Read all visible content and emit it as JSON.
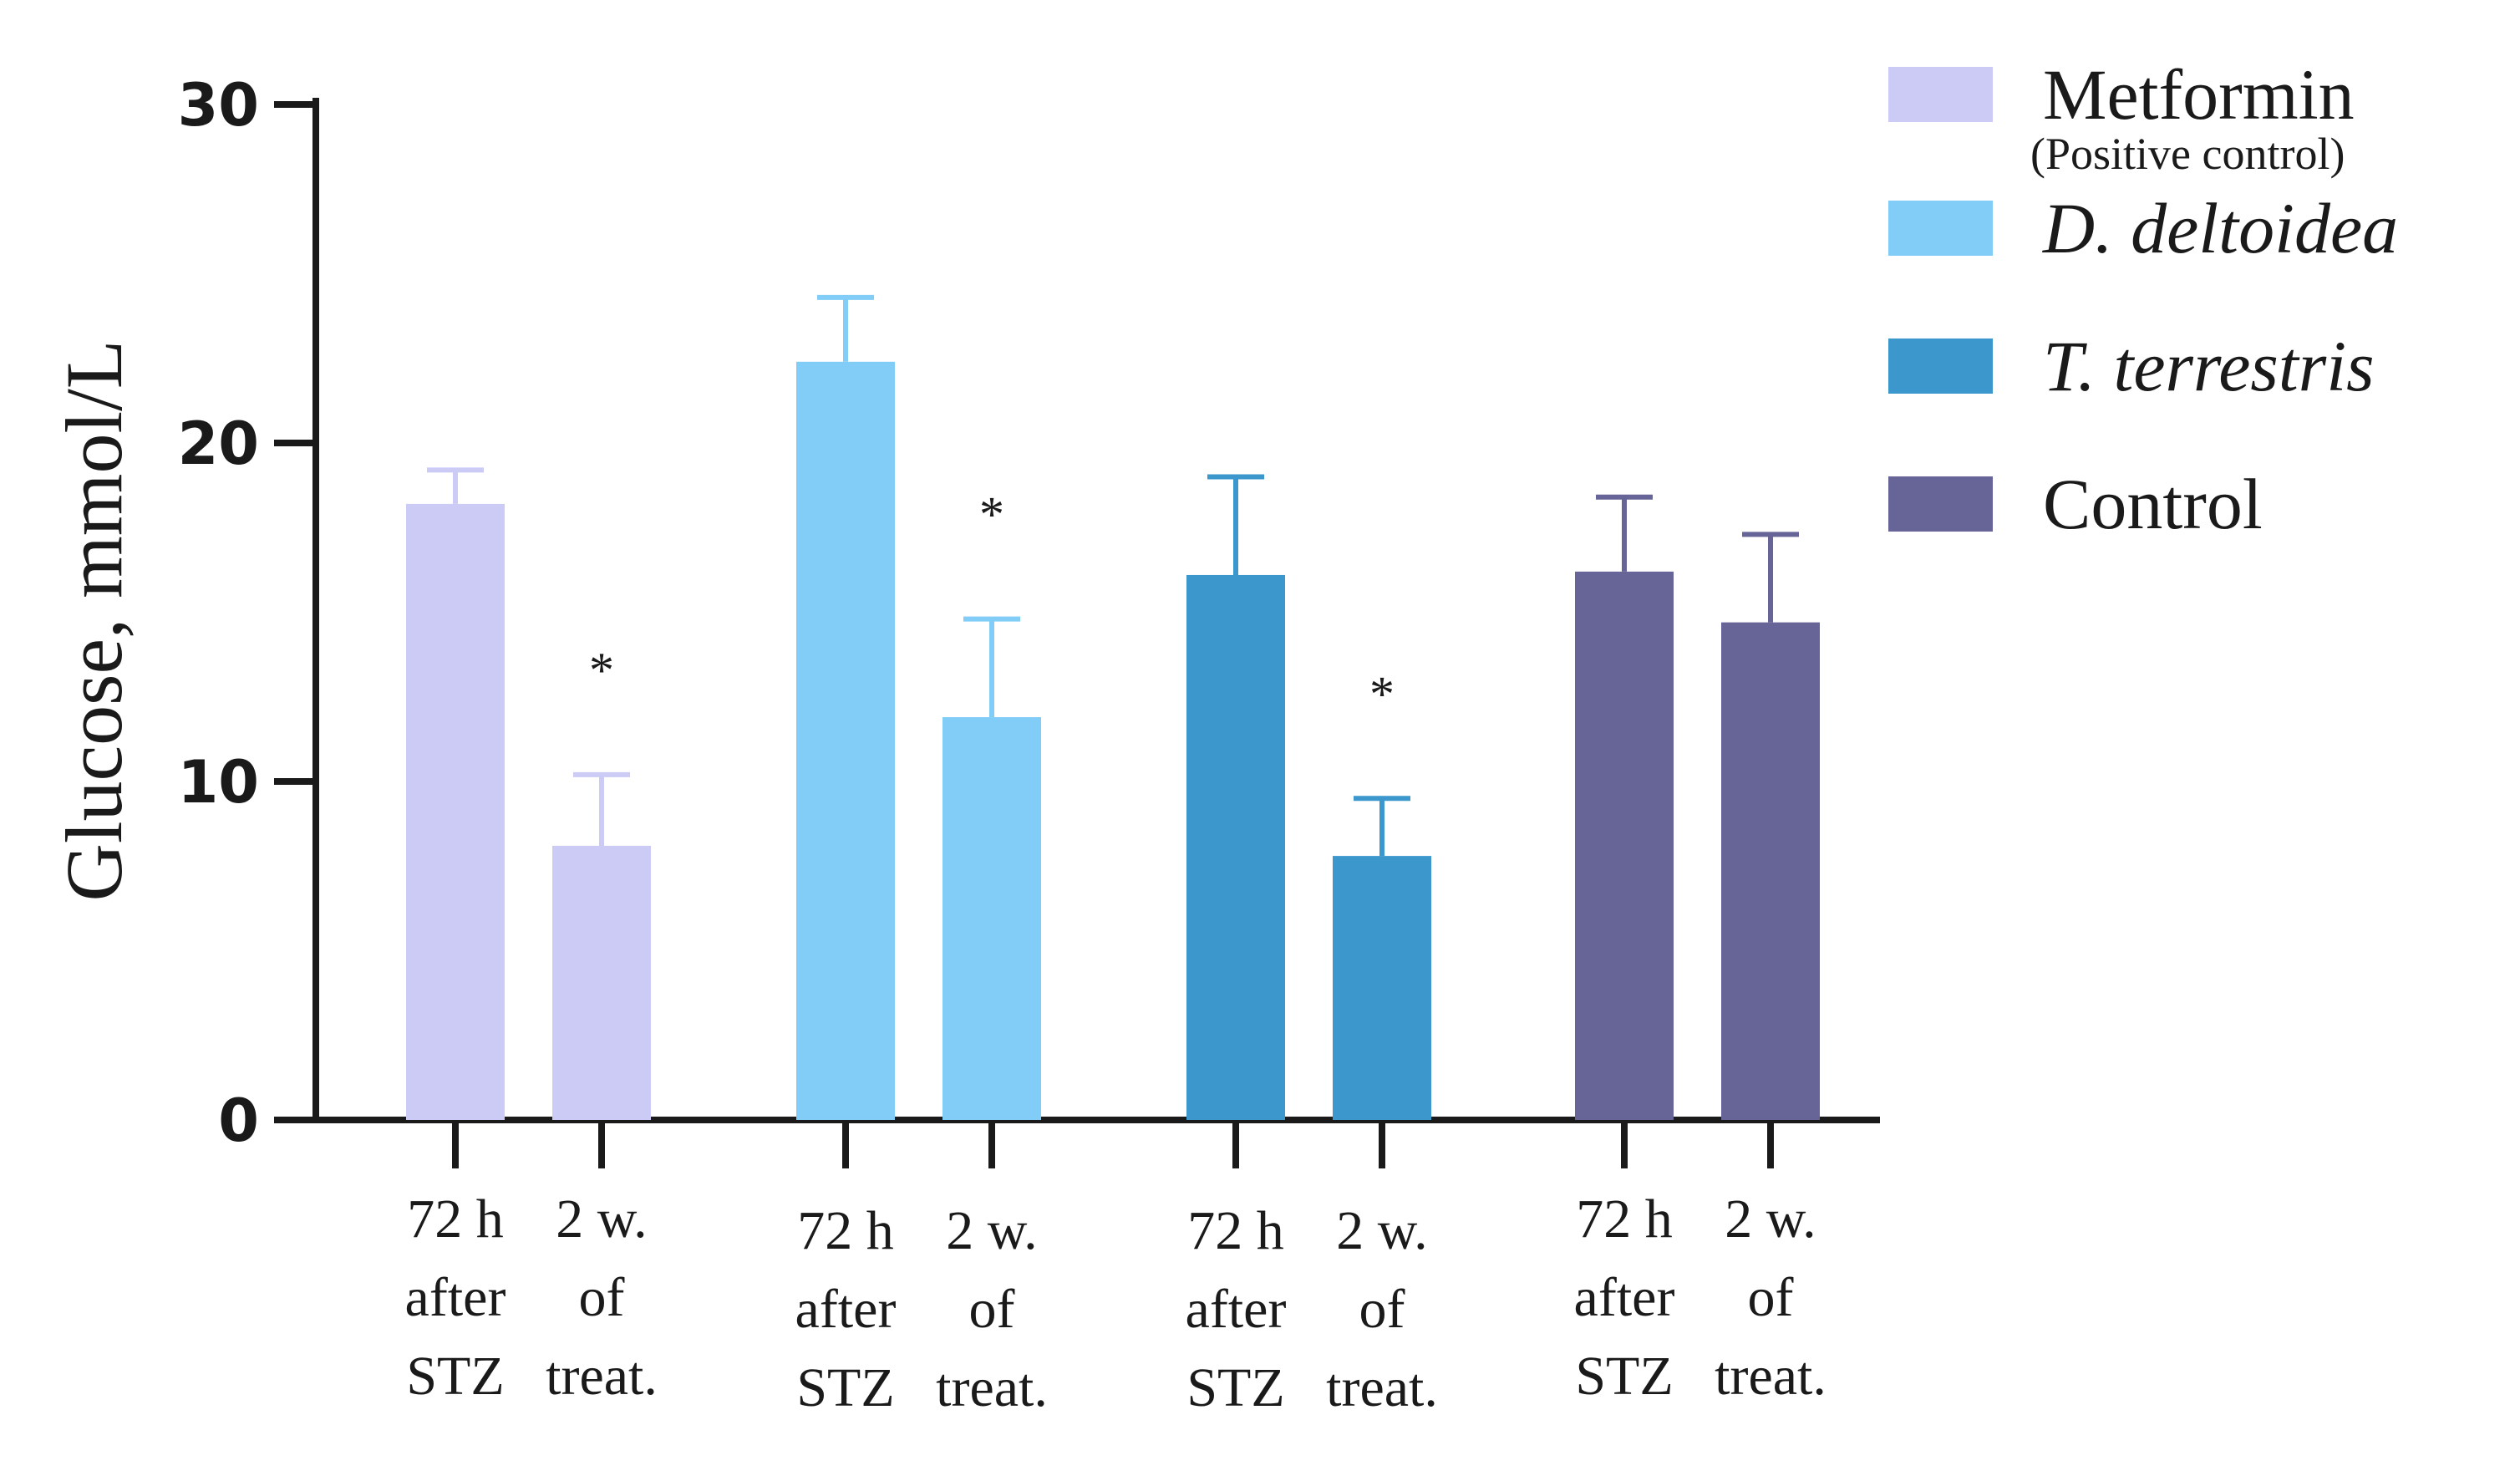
{
  "chart_data": {
    "type": "bar",
    "ylabel": "Glucose, mmol/L",
    "ylim": [
      0,
      30
    ],
    "yticks": [
      "0",
      "10",
      "20",
      "30"
    ],
    "groups": [
      "Metformin",
      "D. deltoidea",
      "T. terrestris",
      "Control"
    ],
    "timepoints": [
      [
        "72 h",
        "after",
        "STZ"
      ],
      [
        "2 w.",
        "of",
        "treat."
      ]
    ],
    "series": [
      {
        "name": "Metformin",
        "subtitle": "(Positive control)",
        "color": "#cccbf6",
        "values": [
          18.2,
          8.1
        ],
        "errors": [
          1.0,
          2.1
        ],
        "significance": [
          "",
          "*"
        ]
      },
      {
        "name": "D. deltoidea",
        "italic": true,
        "color": "#82cdf8",
        "values": [
          22.4,
          11.9
        ],
        "errors": [
          1.9,
          2.9
        ],
        "significance": [
          "",
          "*"
        ]
      },
      {
        "name": "T. terrestris",
        "italic": true,
        "color": "#3c97cc",
        "values": [
          16.1,
          7.8
        ],
        "errors": [
          2.9,
          1.7
        ],
        "significance": [
          "",
          "*"
        ]
      },
      {
        "name": "Control",
        "color": "#676497",
        "values": [
          16.2,
          14.7
        ],
        "errors": [
          2.2,
          2.6
        ],
        "significance": [
          "",
          ""
        ]
      }
    ],
    "legend": {
      "placement": "top-right",
      "entries": [
        {
          "name": "Metformin",
          "subtitle": "(Positive control)",
          "color": "#cccbf6"
        },
        {
          "name": "D. deltoidea",
          "color": "#82cdf8"
        },
        {
          "name": "T. terrestris",
          "color": "#3c97cc"
        },
        {
          "name": "Control",
          "color": "#676497"
        }
      ]
    }
  }
}
